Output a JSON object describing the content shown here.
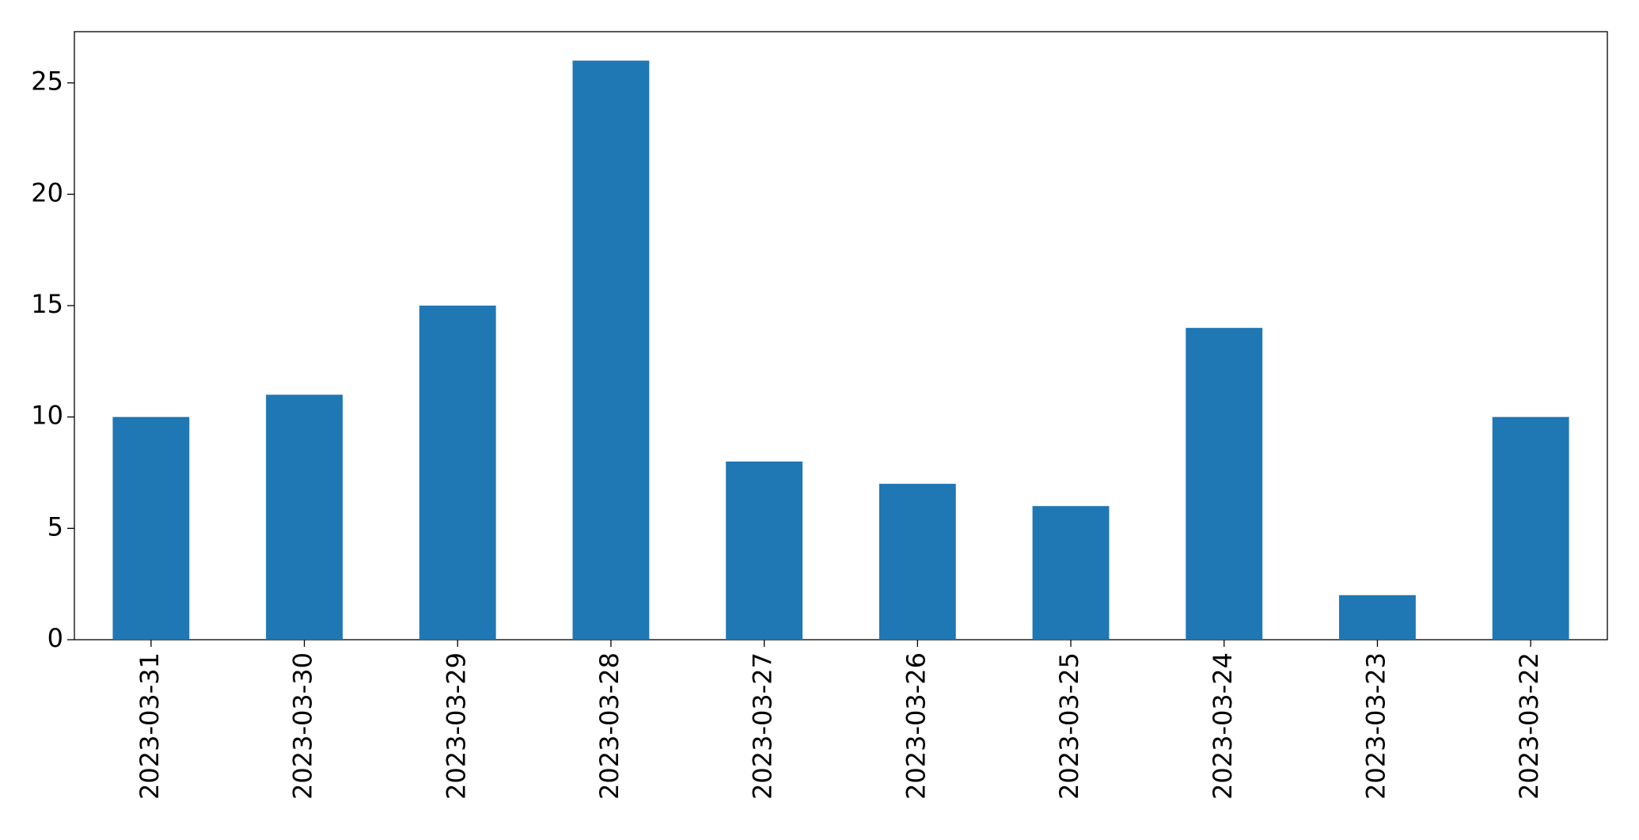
{
  "chart_data": {
    "type": "bar",
    "categories": [
      "2023-03-31",
      "2023-03-30",
      "2023-03-29",
      "2023-03-28",
      "2023-03-27",
      "2023-03-26",
      "2023-03-25",
      "2023-03-24",
      "2023-03-23",
      "2023-03-22"
    ],
    "values": [
      10,
      11,
      15,
      26,
      8,
      7,
      6,
      14,
      2,
      10
    ],
    "color": "#1f77b4",
    "ylim": [
      0,
      27.3
    ],
    "yticks": [
      0,
      5,
      10,
      15,
      20,
      25
    ],
    "grid": false
  }
}
